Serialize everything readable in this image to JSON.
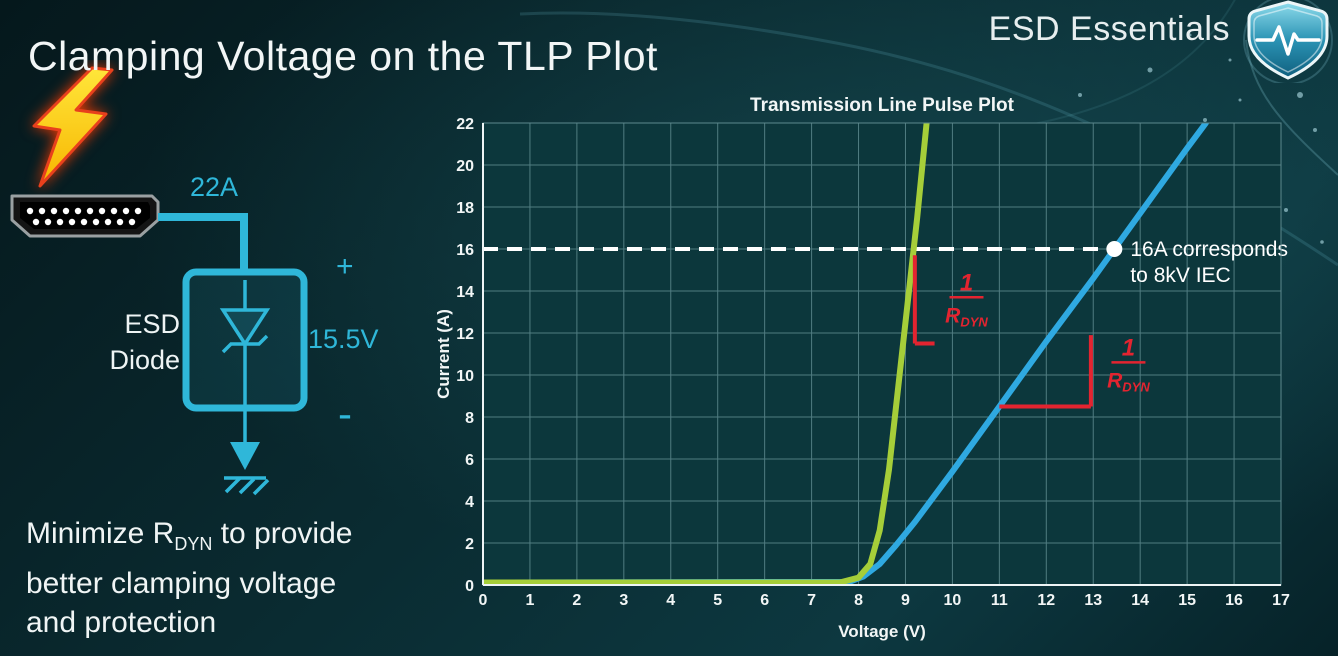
{
  "slide": {
    "title": "Clamping Voltage on the TLP Plot",
    "brand": "ESD Essentials"
  },
  "colors": {
    "accent_cyan": "#2fb7d9",
    "series_green": "#a6ce39",
    "series_blue": "#2fa9e1",
    "annotation_red": "#e32430",
    "background_dark": "#0a2b31"
  },
  "diagram": {
    "surge_current": "22A",
    "device_name_line1": "ESD",
    "device_name_line2": "Diode",
    "polarity_plus": "+",
    "polarity_minus": "-",
    "clamping_voltage": "15.5V"
  },
  "caption": {
    "line1_prefix": "Minimize R",
    "line1_sub": "DYN",
    "line1_suffix": " to provide",
    "line2": "better clamping voltage",
    "line3": "and protection"
  },
  "chart_data": {
    "type": "line",
    "title": "Transmission Line Pulse Plot",
    "xlabel": "Voltage (V)",
    "ylabel": "Current (A)",
    "xlim": [
      0,
      17
    ],
    "ylim": [
      0,
      22
    ],
    "xticks": [
      0,
      1,
      2,
      3,
      4,
      5,
      6,
      7,
      8,
      9,
      10,
      11,
      12,
      13,
      14,
      15,
      16,
      17
    ],
    "yticks": [
      0,
      2,
      4,
      6,
      8,
      10,
      12,
      14,
      16,
      18,
      20,
      22
    ],
    "grid": true,
    "colors": {
      "plot_background": "#0c373c",
      "grid": "#5d898e",
      "axis": "#eef4f5",
      "text": "#f2f6f6"
    },
    "series": [
      {
        "name": "higher-rdyn-diode",
        "color": "#2fa9e1",
        "points": [
          [
            0,
            0.12
          ],
          [
            7.8,
            0.15
          ],
          [
            8.1,
            0.4
          ],
          [
            8.45,
            1.0
          ],
          [
            8.8,
            1.9
          ],
          [
            9.2,
            3.0
          ],
          [
            10,
            5.4
          ],
          [
            11,
            8.5
          ],
          [
            12,
            11.6
          ],
          [
            13,
            14.6
          ],
          [
            13.45,
            16.0
          ],
          [
            14,
            17.7
          ],
          [
            15,
            20.8
          ],
          [
            15.4,
            22
          ]
        ]
      },
      {
        "name": "low-rdyn-diode",
        "color": "#a6ce39",
        "points": [
          [
            0,
            0.12
          ],
          [
            7.6,
            0.12
          ],
          [
            8.0,
            0.35
          ],
          [
            8.25,
            1.0
          ],
          [
            8.45,
            2.6
          ],
          [
            8.65,
            5.5
          ],
          [
            8.85,
            9.5
          ],
          [
            9.05,
            13.5
          ],
          [
            9.25,
            17.5
          ],
          [
            9.45,
            22
          ]
        ]
      }
    ],
    "annotations": {
      "threshold": {
        "y": 16,
        "x_end": 13.45,
        "marker": {
          "x": 13.45,
          "y": 16
        },
        "label_line1": "16A corresponds",
        "label_line2": "to 8kV IEC",
        "color": "#ffffff"
      },
      "slope_indicators": [
        {
          "id": "green-slope-indicator",
          "color": "#e32430",
          "segments": [
            [
              9.2,
              11.5,
              9.2,
              15.7
            ],
            [
              9.2,
              11.5,
              9.62,
              11.5
            ]
          ],
          "fraction": {
            "numerator": "1",
            "denominator": "R",
            "denominator_sub": "DYN",
            "x": 10.3,
            "y": 13.7
          }
        },
        {
          "id": "blue-slope-indicator",
          "color": "#e32430",
          "segments": [
            [
              11.0,
              8.5,
              12.95,
              8.5
            ],
            [
              12.95,
              8.5,
              12.95,
              11.9
            ]
          ],
          "fraction": {
            "numerator": "1",
            "denominator": "R",
            "denominator_sub": "DYN",
            "x": 13.75,
            "y": 10.6
          }
        }
      ]
    }
  }
}
